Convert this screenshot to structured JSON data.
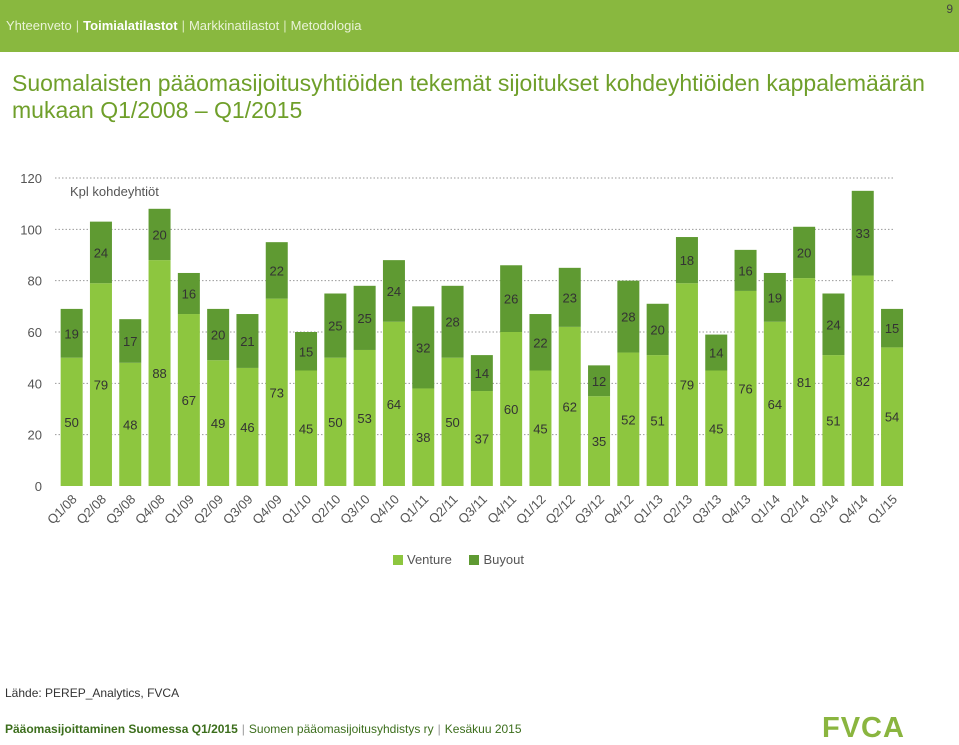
{
  "page_number": "9",
  "nav": {
    "items": [
      {
        "label": "Yhteenveto",
        "active": false
      },
      {
        "label": "Toimialatilastot",
        "active": true
      },
      {
        "label": "Markkinatilastot",
        "active": false
      },
      {
        "label": "Metodologia",
        "active": false
      }
    ]
  },
  "title": "Suomalaisten pääomasijoitusyhtiöiden tekemät sijoitukset kohdeyhtiöiden kappalemäärän mukaan Q1/2008 – Q1/2015",
  "source": "Lähde: PEREP_Analytics, FVCA",
  "footer": {
    "publication": "Pääomasijoittaminen Suomessa Q1/2015",
    "organization": "Suomen pääomasijoitusyhdistys ry",
    "date": "Kesäkuu 2015"
  },
  "logo_text": "FVCA",
  "colors": {
    "venture": "#8dc63f",
    "buyout": "#5f9a32",
    "topbar": "#89b83f",
    "title": "#6f9f2a"
  },
  "chart_data": {
    "type": "bar",
    "stacked": true,
    "ylabel": "Kpl kohdeyhtiöt",
    "ylim": [
      0,
      120
    ],
    "yticks": [
      0,
      20,
      40,
      60,
      80,
      100,
      120
    ],
    "grid": true,
    "legend_position": "bottom-center",
    "categories": [
      "Q1/08",
      "Q2/08",
      "Q3/08",
      "Q4/08",
      "Q1/09",
      "Q2/09",
      "Q3/09",
      "Q4/09",
      "Q1/10",
      "Q2/10",
      "Q3/10",
      "Q4/10",
      "Q1/11",
      "Q2/11",
      "Q3/11",
      "Q4/11",
      "Q1/12",
      "Q2/12",
      "Q3/12",
      "Q4/12",
      "Q1/13",
      "Q2/13",
      "Q3/13",
      "Q4/13",
      "Q1/14",
      "Q2/14",
      "Q3/14",
      "Q4/14",
      "Q1/15"
    ],
    "series": [
      {
        "name": "Venture",
        "values": [
          50,
          79,
          48,
          88,
          67,
          49,
          46,
          73,
          45,
          50,
          53,
          64,
          38,
          50,
          37,
          60,
          45,
          62,
          35,
          52,
          51,
          79,
          45,
          76,
          64,
          81,
          51,
          82,
          54
        ]
      },
      {
        "name": "Buyout",
        "values": [
          19,
          24,
          17,
          20,
          16,
          20,
          21,
          22,
          15,
          25,
          25,
          24,
          32,
          28,
          14,
          26,
          22,
          23,
          12,
          28,
          20,
          18,
          14,
          16,
          19,
          20,
          24,
          33,
          15
        ]
      }
    ]
  }
}
